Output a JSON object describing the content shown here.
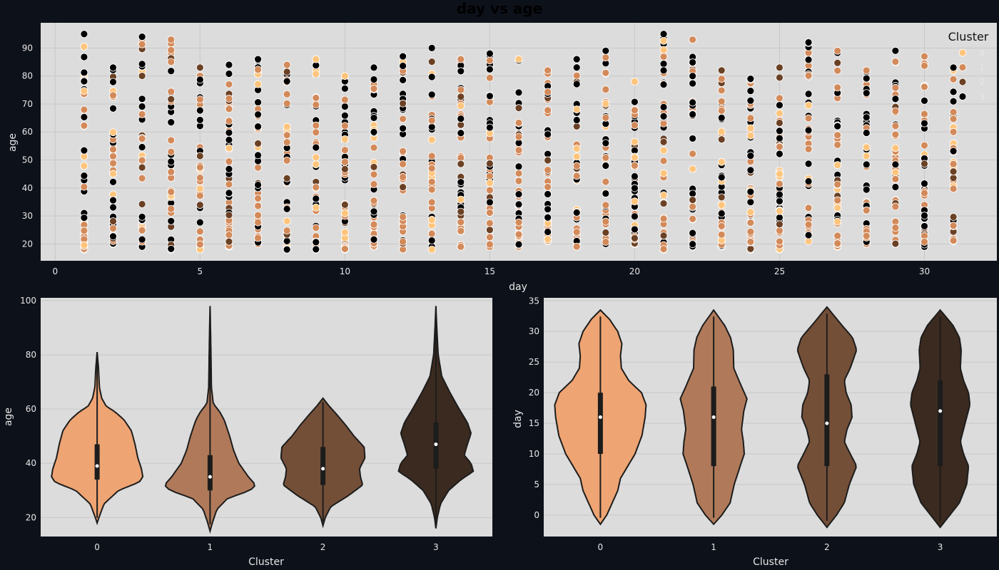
{
  "title": "day vs age",
  "colors": {
    "figure_bg": "#0d111a",
    "axes_bg": "#dcdcdc",
    "grid": "#c8c8c8",
    "cluster": [
      "#ffc57d",
      "#d38a5a",
      "#6b4125",
      "#000000"
    ],
    "violin": [
      "#eea473",
      "#b07a5a",
      "#744f38",
      "#3b2a1f"
    ],
    "violin_edge": "#1c1c1c"
  },
  "chart_data": [
    {
      "type": "scatter",
      "name": "day-vs-age",
      "xlabel": "day",
      "ylabel": "age",
      "xlim": [
        -0.5,
        32.5
      ],
      "ylim": [
        14,
        99
      ],
      "xticks": [
        0,
        5,
        10,
        15,
        20,
        25,
        30
      ],
      "yticks": [
        20,
        30,
        40,
        50,
        60,
        70,
        80,
        90
      ],
      "grid": true,
      "legend": {
        "title": "Cluster",
        "placement": "top-right",
        "entries": [
          "0",
          "1",
          "2",
          "3"
        ]
      },
      "days": [
        {
          "day": 1,
          "min": 18,
          "max": 95
        },
        {
          "day": 2,
          "min": 20,
          "max": 83
        },
        {
          "day": 3,
          "min": 19,
          "max": 94
        },
        {
          "day": 4,
          "min": 18,
          "max": 93
        },
        {
          "day": 5,
          "min": 18,
          "max": 83
        },
        {
          "day": 6,
          "min": 19,
          "max": 84
        },
        {
          "day": 7,
          "min": 20,
          "max": 86
        },
        {
          "day": 8,
          "min": 18,
          "max": 84
        },
        {
          "day": 9,
          "min": 18,
          "max": 86
        },
        {
          "day": 10,
          "min": 18,
          "max": 80
        },
        {
          "day": 11,
          "min": 19,
          "max": 83
        },
        {
          "day": 12,
          "min": 18,
          "max": 87
        },
        {
          "day": 13,
          "min": 18,
          "max": 90
        },
        {
          "day": 14,
          "min": 19,
          "max": 86
        },
        {
          "day": 15,
          "min": 19,
          "max": 88
        },
        {
          "day": 16,
          "min": 19,
          "max": 86
        },
        {
          "day": 17,
          "min": 21,
          "max": 82
        },
        {
          "day": 18,
          "min": 19,
          "max": 86
        },
        {
          "day": 19,
          "min": 20,
          "max": 89
        },
        {
          "day": 20,
          "min": 20,
          "max": 78
        },
        {
          "day": 21,
          "min": 18,
          "max": 95
        },
        {
          "day": 22,
          "min": 19,
          "max": 93
        },
        {
          "day": 23,
          "min": 19,
          "max": 82
        },
        {
          "day": 24,
          "min": 18,
          "max": 79
        },
        {
          "day": 25,
          "min": 18,
          "max": 83
        },
        {
          "day": 26,
          "min": 21,
          "max": 92
        },
        {
          "day": 27,
          "min": 19,
          "max": 89
        },
        {
          "day": 28,
          "min": 20,
          "max": 82
        },
        {
          "day": 29,
          "min": 20,
          "max": 89
        },
        {
          "day": 30,
          "min": 19,
          "max": 87
        },
        {
          "day": 31,
          "min": 21,
          "max": 83
        }
      ]
    },
    {
      "type": "violin",
      "name": "age-by-cluster",
      "xlabel": "Cluster",
      "ylabel": "age",
      "categories": [
        "0",
        "1",
        "2",
        "3"
      ],
      "ylim": [
        13,
        101
      ],
      "yticks": [
        20,
        40,
        60,
        80,
        100
      ],
      "grid": true,
      "violins": [
        {
          "cluster": "0",
          "min": 18,
          "max": 81,
          "q1": 34,
          "median": 39,
          "q3": 47,
          "profile": [
            [
              18,
              0.0
            ],
            [
              20,
              0.04
            ],
            [
              25,
              0.15
            ],
            [
              30,
              0.47
            ],
            [
              33,
              0.92
            ],
            [
              35,
              1.0
            ],
            [
              38,
              0.97
            ],
            [
              42,
              0.89
            ],
            [
              47,
              0.83
            ],
            [
              52,
              0.75
            ],
            [
              56,
              0.59
            ],
            [
              59,
              0.39
            ],
            [
              61,
              0.2
            ],
            [
              64,
              0.1
            ],
            [
              68,
              0.05
            ],
            [
              75,
              0.03
            ],
            [
              81,
              0.0
            ]
          ]
        },
        {
          "cluster": "1",
          "min": 15,
          "max": 98,
          "q1": 30,
          "median": 35,
          "q3": 43,
          "profile": [
            [
              15,
              0.0
            ],
            [
              18,
              0.05
            ],
            [
              23,
              0.15
            ],
            [
              27,
              0.38
            ],
            [
              30,
              0.88
            ],
            [
              32,
              1.0
            ],
            [
              35,
              0.84
            ],
            [
              40,
              0.63
            ],
            [
              45,
              0.51
            ],
            [
              50,
              0.43
            ],
            [
              56,
              0.31
            ],
            [
              59,
              0.21
            ],
            [
              62,
              0.07
            ],
            [
              68,
              0.03
            ],
            [
              80,
              0.02
            ],
            [
              90,
              0.01
            ],
            [
              98,
              0.0
            ]
          ]
        },
        {
          "cluster": "2",
          "min": 17,
          "max": 64,
          "q1": 32,
          "median": 38,
          "q3": 46,
          "profile": [
            [
              17,
              0.0
            ],
            [
              20,
              0.05
            ],
            [
              24,
              0.17
            ],
            [
              28,
              0.55
            ],
            [
              32,
              0.87
            ],
            [
              35,
              0.82
            ],
            [
              38,
              0.8
            ],
            [
              42,
              0.92
            ],
            [
              46,
              0.9
            ],
            [
              50,
              0.68
            ],
            [
              54,
              0.5
            ],
            [
              58,
              0.3
            ],
            [
              61,
              0.14
            ],
            [
              64,
              0.0
            ]
          ]
        },
        {
          "cluster": "3",
          "min": 16,
          "max": 98,
          "q1": 38,
          "median": 47,
          "q3": 55,
          "profile": [
            [
              16,
              0.0
            ],
            [
              20,
              0.03
            ],
            [
              25,
              0.1
            ],
            [
              30,
              0.28
            ],
            [
              34,
              0.55
            ],
            [
              37,
              0.82
            ],
            [
              40,
              0.77
            ],
            [
              43,
              0.62
            ],
            [
              47,
              0.69
            ],
            [
              51,
              0.77
            ],
            [
              55,
              0.69
            ],
            [
              60,
              0.51
            ],
            [
              66,
              0.31
            ],
            [
              72,
              0.13
            ],
            [
              80,
              0.05
            ],
            [
              90,
              0.02
            ],
            [
              98,
              0.0
            ]
          ]
        }
      ]
    },
    {
      "type": "violin",
      "name": "day-by-cluster",
      "xlabel": "Cluster",
      "ylabel": "day",
      "categories": [
        "0",
        "1",
        "2",
        "3"
      ],
      "ylim": [
        -3.5,
        35.5
      ],
      "yticks": [
        0,
        5,
        10,
        15,
        20,
        25,
        30,
        35
      ],
      "grid": true,
      "violins": [
        {
          "cluster": "0",
          "min": -1.5,
          "max": 33.5,
          "q1": 10,
          "median": 16,
          "q3": 20,
          "profile": [
            [
              -1.5,
              0.0
            ],
            [
              0,
              0.14
            ],
            [
              2,
              0.26
            ],
            [
              4,
              0.38
            ],
            [
              6,
              0.44
            ],
            [
              8,
              0.6
            ],
            [
              10,
              0.76
            ],
            [
              13,
              0.91
            ],
            [
              16,
              0.98
            ],
            [
              18,
              1.0
            ],
            [
              20,
              0.9
            ],
            [
              22,
              0.62
            ],
            [
              24,
              0.46
            ],
            [
              26,
              0.44
            ],
            [
              28,
              0.47
            ],
            [
              30,
              0.38
            ],
            [
              32,
              0.2
            ],
            [
              33.5,
              0.0
            ]
          ]
        },
        {
          "cluster": "1",
          "min": -1.5,
          "max": 33.5,
          "q1": 8,
          "median": 16,
          "q3": 21,
          "profile": [
            [
              -1.5,
              0.0
            ],
            [
              0,
              0.18
            ],
            [
              2,
              0.36
            ],
            [
              5,
              0.45
            ],
            [
              8,
              0.58
            ],
            [
              10,
              0.67
            ],
            [
              12,
              0.65
            ],
            [
              14,
              0.61
            ],
            [
              17,
              0.66
            ],
            [
              19,
              0.73
            ],
            [
              21,
              0.61
            ],
            [
              24,
              0.44
            ],
            [
              27,
              0.43
            ],
            [
              29,
              0.37
            ],
            [
              31,
              0.24
            ],
            [
              33.5,
              0.0
            ]
          ]
        },
        {
          "cluster": "2",
          "min": -2,
          "max": 34,
          "q1": 8,
          "median": 15,
          "q3": 23,
          "profile": [
            [
              -2,
              0.0
            ],
            [
              0,
              0.21
            ],
            [
              2,
              0.38
            ],
            [
              5,
              0.49
            ],
            [
              8,
              0.65
            ],
            [
              10,
              0.51
            ],
            [
              12,
              0.38
            ],
            [
              14,
              0.44
            ],
            [
              16,
              0.55
            ],
            [
              18,
              0.53
            ],
            [
              20,
              0.42
            ],
            [
              22,
              0.38
            ],
            [
              24,
              0.51
            ],
            [
              27,
              0.65
            ],
            [
              29,
              0.56
            ],
            [
              31,
              0.33
            ],
            [
              34,
              0.0
            ]
          ]
        },
        {
          "cluster": "3",
          "min": -2,
          "max": 33.5,
          "q1": 8,
          "median": 17,
          "q3": 22,
          "profile": [
            [
              -2,
              0.0
            ],
            [
              0,
              0.21
            ],
            [
              2,
              0.42
            ],
            [
              5,
              0.58
            ],
            [
              8,
              0.62
            ],
            [
              10,
              0.51
            ],
            [
              12,
              0.44
            ],
            [
              14,
              0.51
            ],
            [
              16,
              0.58
            ],
            [
              18,
              0.65
            ],
            [
              20,
              0.62
            ],
            [
              22,
              0.51
            ],
            [
              24,
              0.44
            ],
            [
              27,
              0.46
            ],
            [
              29,
              0.42
            ],
            [
              31,
              0.28
            ],
            [
              33.5,
              0.0
            ]
          ]
        }
      ]
    }
  ]
}
